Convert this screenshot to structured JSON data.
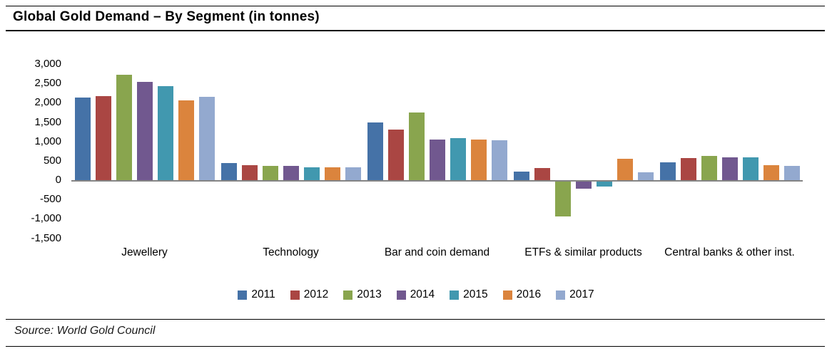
{
  "header": {
    "title": "Global Gold Demand – By Segment (in tonnes)"
  },
  "footer": {
    "source": "Source: World Gold Council"
  },
  "chart_data": {
    "type": "bar",
    "title": "Global Gold Demand – By Segment (in tonnes)",
    "categories": [
      "Jewellery",
      "Technology",
      "Bar and coin demand",
      "ETFs & similar products",
      "Central banks & other inst."
    ],
    "series": [
      {
        "name": "2011",
        "color": "#4572A7",
        "values": [
          2130,
          445,
          1500,
          225,
          465
        ]
      },
      {
        "name": "2012",
        "color": "#AA4643",
        "values": [
          2180,
          390,
          1315,
          310,
          570
        ]
      },
      {
        "name": "2013",
        "color": "#89A54E",
        "values": [
          2720,
          370,
          1740,
          -910,
          630
        ]
      },
      {
        "name": "2014",
        "color": "#71588F",
        "values": [
          2540,
          365,
          1040,
          -200,
          590
        ]
      },
      {
        "name": "2015",
        "color": "#4198AF",
        "values": [
          2430,
          335,
          1095,
          -135,
          585
        ]
      },
      {
        "name": "2016",
        "color": "#DB843D",
        "values": [
          2070,
          330,
          1055,
          550,
          390
        ]
      },
      {
        "name": "2017",
        "color": "#93A9CF",
        "values": [
          2150,
          335,
          1035,
          195,
          370
        ]
      }
    ],
    "ylim": [
      -1500,
      3000
    ],
    "ytick_step": 500,
    "ytick_labels": [
      "3,000",
      "2,500",
      "2,000",
      "1,500",
      "1,000",
      "500",
      "0",
      "-500",
      "-1,000",
      "-1,500"
    ],
    "grid": false,
    "legend_position": "bottom",
    "axis_color": "#848484",
    "source": "Source: World Gold Council"
  }
}
